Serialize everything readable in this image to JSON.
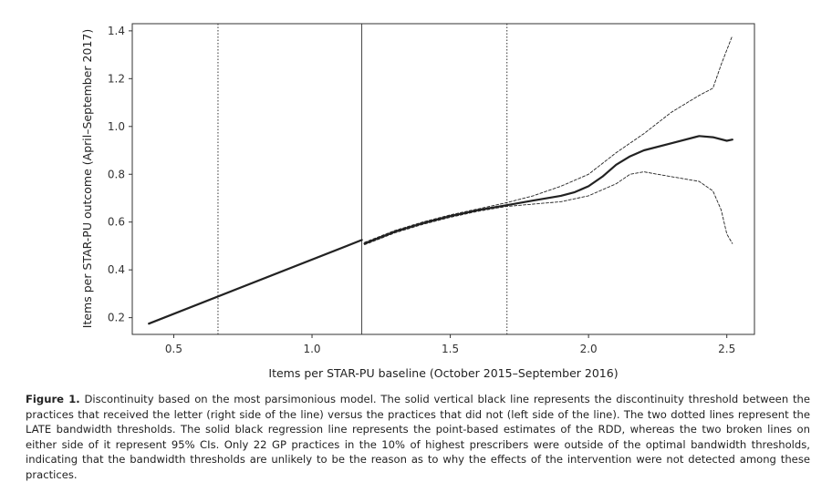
{
  "chart_data": {
    "type": "line",
    "title": "",
    "xlabel": "Items per STAR-PU baseline (October 2015–September 2016)",
    "ylabel": "Items per STAR-PU outcome (April–September 2017)",
    "xlim": [
      0.35,
      2.6
    ],
    "ylim": [
      0.13,
      1.43
    ],
    "xticks": [
      0.5,
      1.0,
      1.5,
      2.0,
      2.5
    ],
    "xtick_labels": [
      "0.5",
      "1.0",
      "1.5",
      "2.0",
      "2.5"
    ],
    "yticks": [
      0.2,
      0.4,
      0.6,
      0.8,
      1.0,
      1.2,
      1.4
    ],
    "ytick_labels": [
      "0.2",
      "0.4",
      "0.6",
      "0.8",
      "1.0",
      "1.2",
      "1.4"
    ],
    "grid": false,
    "legend": "none",
    "vertical_lines": [
      {
        "x": 0.66,
        "style": "dotted"
      },
      {
        "x": 1.18,
        "style": "solid"
      },
      {
        "x": 1.705,
        "style": "dotted"
      }
    ],
    "series": [
      {
        "style": "solid-thick",
        "segment": "left",
        "x": [
          0.41,
          1.18
        ],
        "y": [
          0.175,
          0.525
        ]
      },
      {
        "style": "solid-thick",
        "segment": "right",
        "x": [
          1.19,
          1.3,
          1.4,
          1.5,
          1.6,
          1.7,
          1.8,
          1.9,
          1.95,
          2.0,
          2.05,
          2.1,
          2.15,
          2.2,
          2.3,
          2.4,
          2.45,
          2.5,
          2.52
        ],
        "y": [
          0.51,
          0.56,
          0.595,
          0.625,
          0.65,
          0.67,
          0.69,
          0.71,
          0.725,
          0.75,
          0.79,
          0.84,
          0.875,
          0.9,
          0.93,
          0.96,
          0.955,
          0.94,
          0.945
        ]
      },
      {
        "style": "dashed",
        "segment": "upper-ci",
        "x": [
          1.19,
          1.3,
          1.4,
          1.5,
          1.6,
          1.7,
          1.8,
          1.9,
          2.0,
          2.1,
          2.2,
          2.3,
          2.4,
          2.45,
          2.48,
          2.5,
          2.52
        ],
        "y": [
          0.515,
          0.565,
          0.6,
          0.63,
          0.655,
          0.68,
          0.71,
          0.75,
          0.8,
          0.89,
          0.97,
          1.06,
          1.13,
          1.16,
          1.26,
          1.32,
          1.38
        ]
      },
      {
        "style": "dashed",
        "segment": "lower-ci",
        "x": [
          1.19,
          1.3,
          1.4,
          1.5,
          1.6,
          1.7,
          1.8,
          1.9,
          2.0,
          2.1,
          2.15,
          2.2,
          2.25,
          2.3,
          2.4,
          2.45,
          2.48,
          2.5,
          2.52
        ],
        "y": [
          0.505,
          0.555,
          0.59,
          0.62,
          0.645,
          0.665,
          0.675,
          0.685,
          0.71,
          0.76,
          0.8,
          0.81,
          0.8,
          0.79,
          0.77,
          0.73,
          0.65,
          0.55,
          0.51
        ]
      }
    ]
  },
  "caption": {
    "label": "Figure 1.",
    "text": "Discontinuity based on the most parsimonious model. The solid vertical black line represents the discontinuity threshold between the practices that received the letter (right side of the line) versus the practices that did not (left side of the line). The two dotted lines represent the LATE bandwidth thresholds. The solid black regression line represents the point-based estimates of the RDD, whereas the two broken lines on either side of it represent 95% CIs. Only 22 GP practices in the 10% of highest prescribers were outside of the optimal bandwidth thresholds, indicating that the bandwidth thresholds are unlikely to be the reason as to why the effects of the intervention were not detected among these practices."
  }
}
